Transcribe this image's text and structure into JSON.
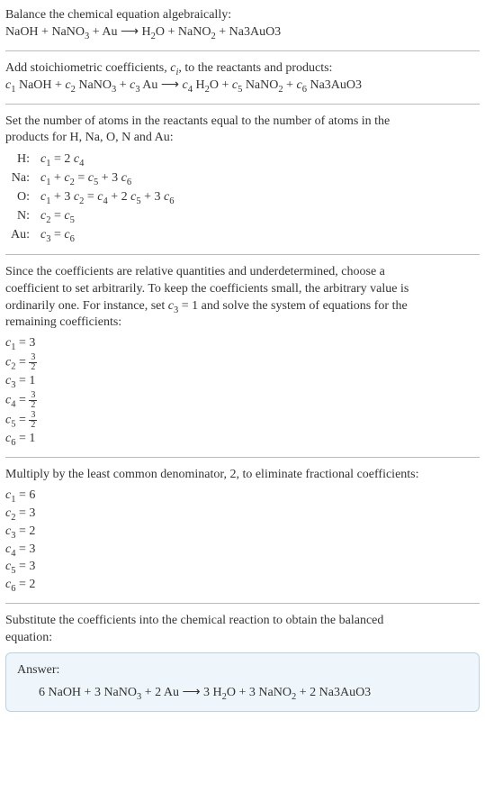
{
  "intro": {
    "line1": "Balance the chemical equation algebraically:",
    "reaction_lhs": "NaOH + NaNO",
    "reaction_lhs2": " + Au ⟶ H",
    "reaction_lhs3": "O + NaNO",
    "reaction_lhs4": " + Na3AuO3"
  },
  "stoich": {
    "line1_a": "Add stoichiometric coefficients, ",
    "line1_c": "c",
    "line1_i": "i",
    "line1_b": ", to the reactants and products:",
    "eq": {
      "p1": " NaOH + ",
      "p2": " NaNO",
      "p3": " + ",
      "p4": " Au ⟶ ",
      "p5": " H",
      "p6": "O + ",
      "p7": " NaNO",
      "p8": " + ",
      "p9": " Na3AuO3"
    }
  },
  "atoms": {
    "intro1": "Set the number of atoms in the reactants equal to the number of atoms in the",
    "intro2": "products for H, Na, O, N and Au:",
    "rows": [
      {
        "label": "H:",
        "eq_pre": "c",
        "s1": "1",
        "mid": " = 2 c",
        "s2": "4"
      },
      {
        "label": "Na:",
        "eq": "c₁ + c₂ = c₅ + 3 c₆"
      },
      {
        "label": "O:",
        "eq": "c₁ + 3 c₂ = c₄ + 2 c₅ + 3 c₆"
      },
      {
        "label": "N:",
        "eq": "c₂ = c₅"
      },
      {
        "label": "Au:",
        "eq": "c₃ = c₆"
      }
    ]
  },
  "relative": {
    "l1": "Since the coefficients are relative quantities and underdetermined, choose a",
    "l2": "coefficient to set arbitrarily. To keep the coefficients small, the arbitrary value is",
    "l3": "ordinarily one. For instance, set ",
    "c3eq": "c₃ = 1",
    "l3b": " and solve the system of equations for the",
    "l4": "remaining coefficients:",
    "coefs": {
      "c1": "c₁ = 3",
      "c2_pre": "c₂ = ",
      "c3": "c₃ = 1",
      "c4_pre": "c₄ = ",
      "c5_pre": "c₅ = ",
      "c6": "c₆ = 1"
    },
    "frac": {
      "num": "3",
      "den": "2"
    }
  },
  "multiply": {
    "l1": "Multiply by the least common denominator, 2, to eliminate fractional coefficients:",
    "coefs": {
      "c1": "c₁ = 6",
      "c2": "c₂ = 3",
      "c3": "c₃ = 2",
      "c4": "c₄ = 3",
      "c5": "c₅ = 3",
      "c6": "c₆ = 2"
    }
  },
  "subst": {
    "l1": "Substitute the coefficients into the chemical reaction to obtain the balanced",
    "l2": "equation:"
  },
  "answer": {
    "title": "Answer:",
    "eq_a": "6 NaOH + 3 NaNO",
    "eq_b": " + 2 Au ⟶ 3 H",
    "eq_c": "O + 3 NaNO",
    "eq_d": " + 2 Na3AuO3"
  }
}
